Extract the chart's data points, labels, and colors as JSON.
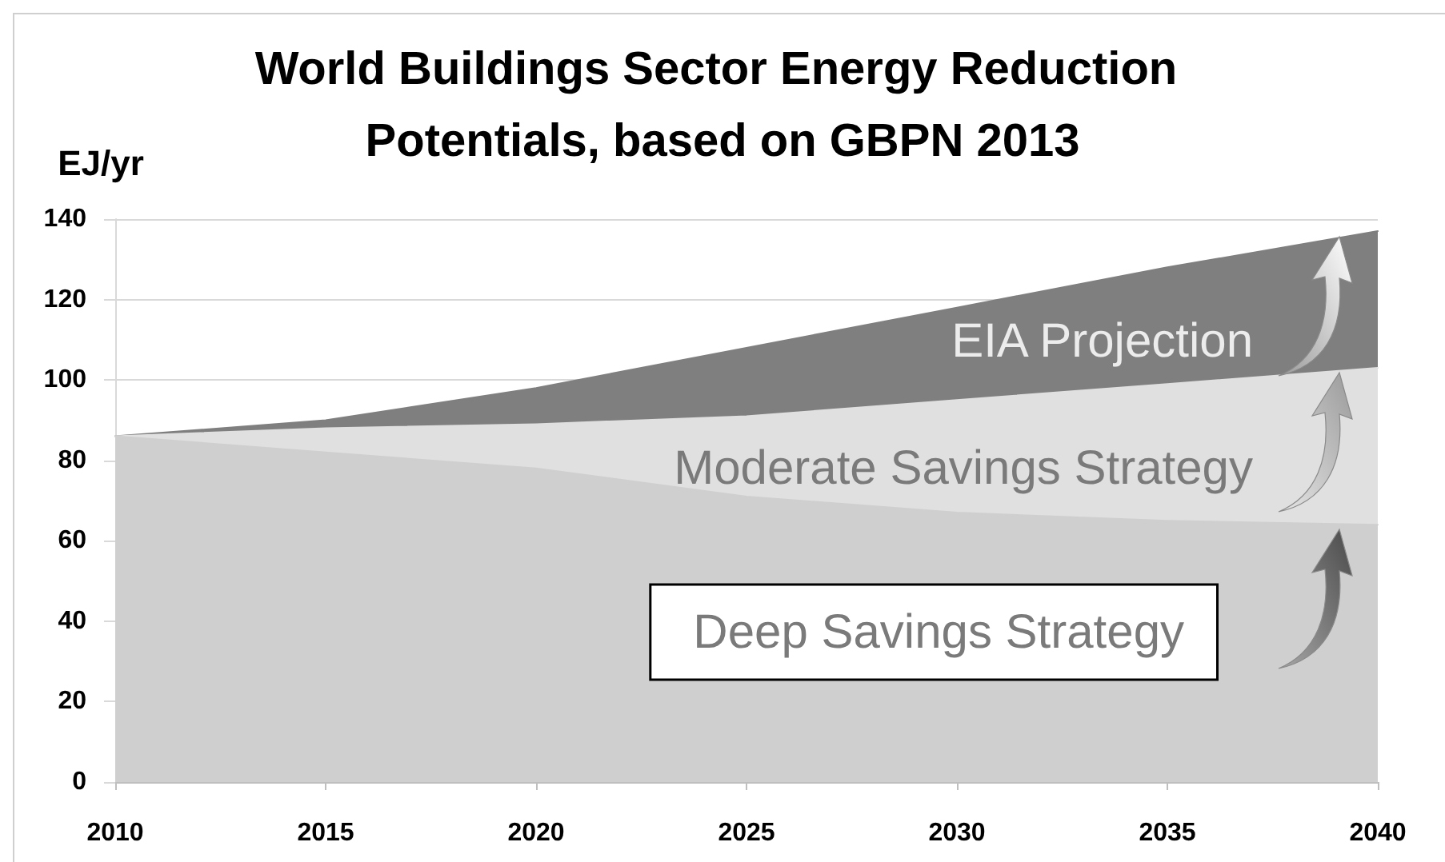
{
  "chart_data": {
    "type": "area",
    "title": "World Buildings Sector Energy Reduction Potentials, based on GBPN 2013",
    "ylabel": "EJ/yr",
    "x": [
      2010,
      2015,
      2020,
      2025,
      2030,
      2035,
      2040
    ],
    "series": [
      {
        "name": "EIA Projection",
        "color": "#7f7f7f",
        "values": [
          86,
          90,
          98,
          108,
          118,
          128,
          137
        ]
      },
      {
        "name": "Moderate Savings Strategy",
        "color": "#e0e0e0",
        "values": [
          86,
          88,
          89,
          91,
          95,
          99,
          103
        ]
      },
      {
        "name": "Deep Savings Strategy",
        "color": "#cfcfcf",
        "values": [
          86,
          82,
          78,
          71,
          67,
          65,
          64
        ]
      }
    ],
    "xlim": [
      2010,
      2040
    ],
    "xticks": [
      2010,
      2015,
      2020,
      2025,
      2030,
      2035,
      2040
    ],
    "ylim": [
      0,
      140
    ],
    "yticks": [
      0,
      20,
      40,
      60,
      80,
      100,
      120,
      140
    ],
    "grid": "y",
    "marker": "none"
  }
}
